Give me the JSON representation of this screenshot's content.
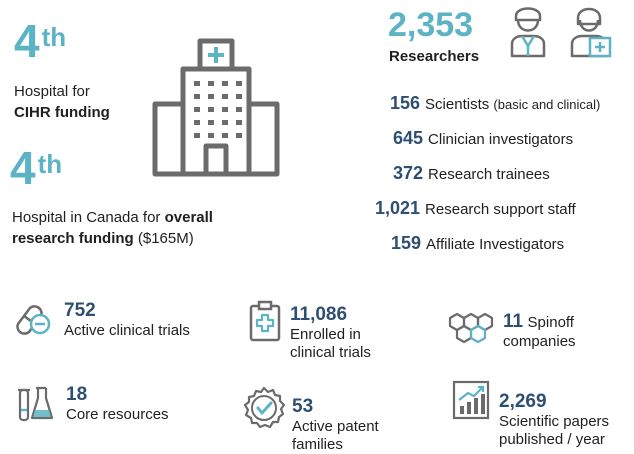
{
  "left": {
    "cihr": {
      "rank_num": "4",
      "rank_suffix": "th",
      "line1": "Hospital for",
      "line2": "CIHR funding"
    },
    "overall": {
      "rank_num": "4",
      "rank_suffix": "th",
      "line1_pre": "Hospital in Canada for",
      "line1_bold": "overall",
      "line2_bold": "research funding",
      "line2_post": "($165M)"
    }
  },
  "researchers": {
    "total": "2,353",
    "label": "Researchers"
  },
  "breakdown": [
    {
      "num": "156",
      "label": "Scientists",
      "note": "(basic and clinical)"
    },
    {
      "num": "645",
      "label": "Clinician investigators"
    },
    {
      "num": "372",
      "label": "Research trainees"
    },
    {
      "num": "1,021",
      "label": "Research support staff"
    },
    {
      "num": "159",
      "label": "Affiliate Investigators"
    }
  ],
  "bottom": {
    "trials": {
      "num": "752",
      "label": "Active clinical trials",
      "icon": "pill-icon"
    },
    "enrolled": {
      "num": "11,086",
      "label1": "Enrolled in",
      "label2": "clinical trials",
      "icon": "clipboard-medical-icon"
    },
    "spinoff": {
      "num": "11",
      "label1": "Spinoff",
      "label2": "companies",
      "icon": "molecule-icon"
    },
    "core": {
      "num": "18",
      "label": "Core resources",
      "icon": "lab-flask-icon"
    },
    "patent": {
      "num": "53",
      "label1": "Active patent",
      "label2": "families",
      "icon": "badge-check-icon"
    },
    "papers": {
      "num": "2,269",
      "label1": "Scientific papers",
      "label2": "published / year",
      "icon": "chart-growth-icon"
    }
  },
  "colors": {
    "teal": "#5bb3c4",
    "navy": "#2e4e72",
    "icon_gray": "#6b6b6b",
    "icon_teal": "#5bb3c4"
  }
}
